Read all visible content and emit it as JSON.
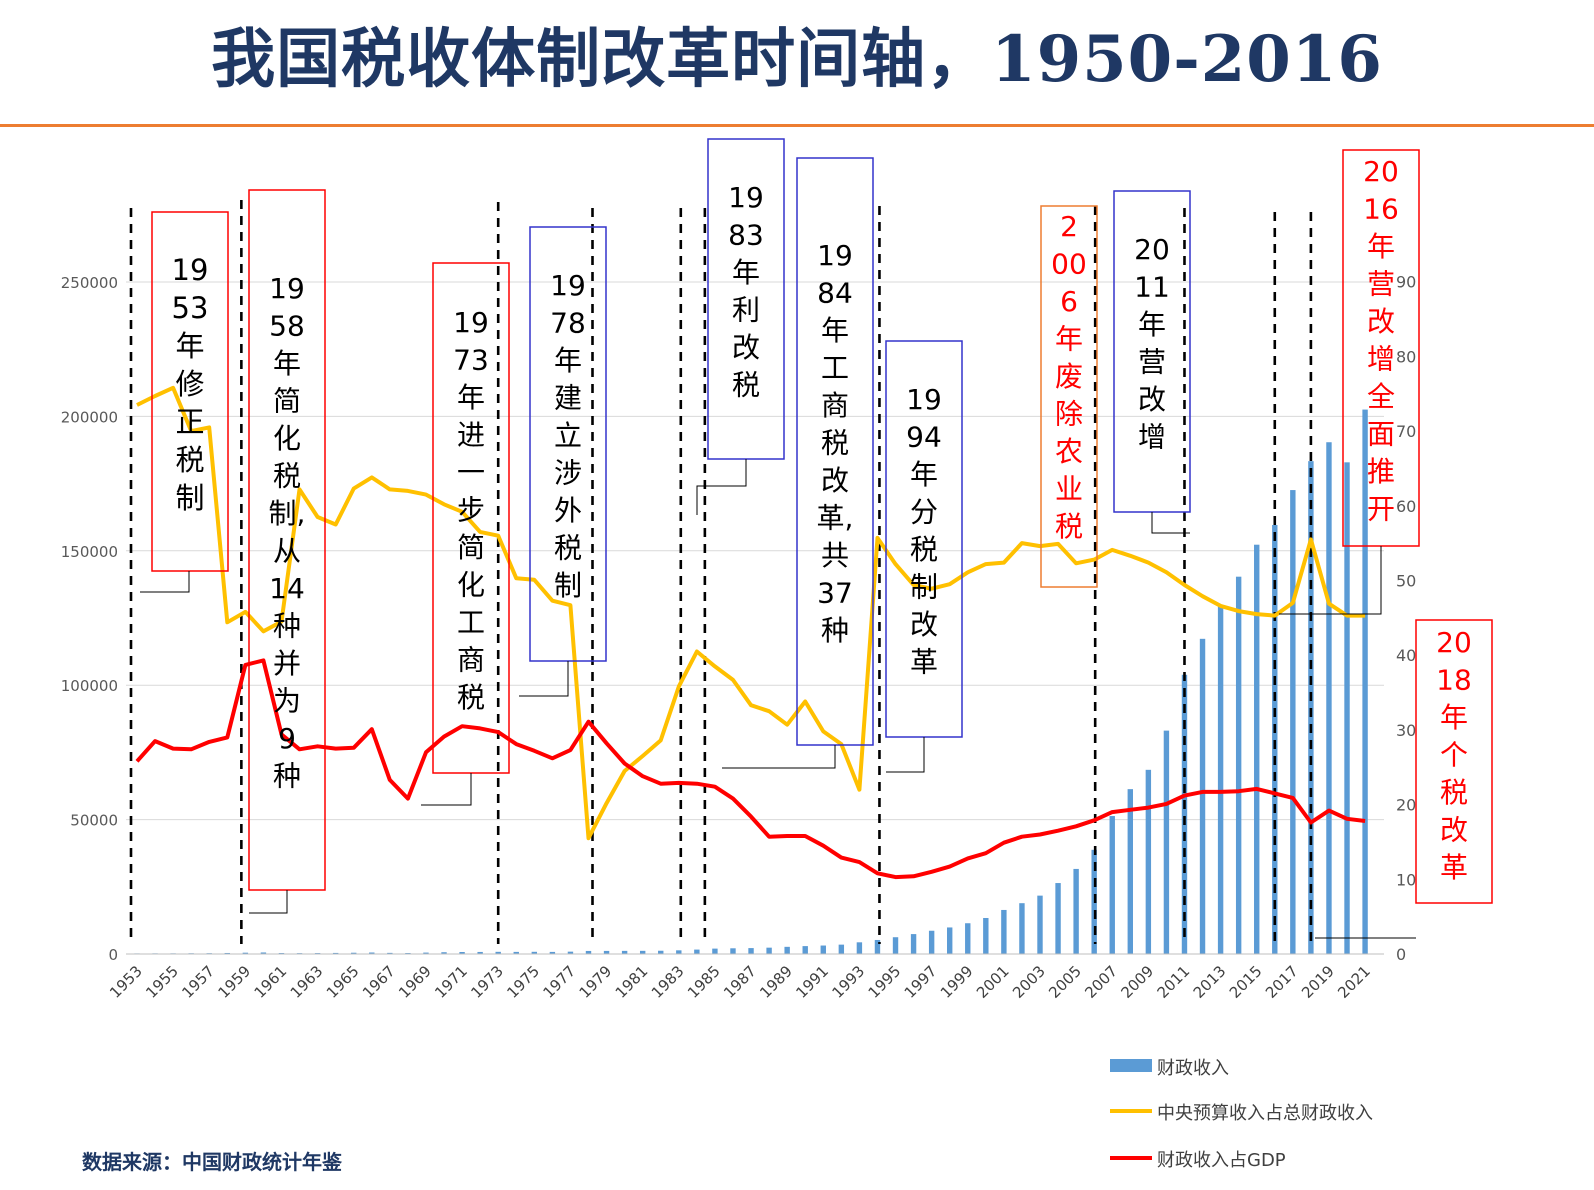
{
  "page": {
    "title": "我国税收体制改革时间轴，1950-2016",
    "source": "数据来源：中国财政统计年鉴"
  },
  "colors": {
    "title": "#1f3864",
    "rule": "#ed7d31",
    "revenue": "#5b9bd5",
    "central_share": "#ffc000",
    "revenue_gdp": "#ff0000",
    "box_red": "#ff0000",
    "box_blue": "#3333cc",
    "box_orange": "#ed7d31"
  },
  "chart_data": {
    "type": "combo",
    "x": [
      1953,
      1954,
      1955,
      1956,
      1957,
      1958,
      1959,
      1960,
      1961,
      1962,
      1963,
      1964,
      1965,
      1966,
      1967,
      1968,
      1969,
      1970,
      1971,
      1972,
      1973,
      1974,
      1975,
      1976,
      1977,
      1978,
      1979,
      1980,
      1981,
      1982,
      1983,
      1984,
      1985,
      1986,
      1987,
      1988,
      1989,
      1990,
      1991,
      1992,
      1993,
      1994,
      1995,
      1996,
      1997,
      1998,
      1999,
      2000,
      2001,
      2002,
      2003,
      2004,
      2005,
      2006,
      2007,
      2008,
      2009,
      2010,
      2011,
      2012,
      2013,
      2014,
      2015,
      2016,
      2017,
      2018,
      2019,
      2020,
      2021
    ],
    "x_tick_labels": [
      "1953",
      "1955",
      "1957",
      "1959",
      "1961",
      "1963",
      "1965",
      "1967",
      "1969",
      "1971",
      "1973",
      "1975",
      "1977",
      "1979",
      "1981",
      "1983",
      "1985",
      "1987",
      "1989",
      "1991",
      "1993",
      "1995",
      "1997",
      "1999",
      "2001",
      "2003",
      "2005",
      "2007",
      "2009",
      "2011",
      "2013",
      "2015",
      "2017",
      "2019",
      "2021"
    ],
    "y_left": {
      "ticks": [
        "0",
        "50000",
        "100000",
        "150000",
        "200000",
        "250000"
      ],
      "range": [
        0,
        250000
      ]
    },
    "y_right": {
      "ticks": [
        "0",
        "10",
        "20",
        "30",
        "40",
        "50",
        "60",
        "70",
        "80",
        "90"
      ],
      "range": [
        0,
        90
      ]
    },
    "grid": true,
    "legend_position": "bottom-right",
    "series": [
      {
        "name": "财政收入",
        "type": "bar",
        "axis": "left",
        "values": [
          213,
          245,
          249,
          280,
          303,
          379,
          487,
          572,
          356,
          314,
          342,
          400,
          473,
          558,
          419,
          361,
          527,
          663,
          744,
          766,
          809,
          783,
          816,
          777,
          874,
          1132,
          1146,
          1160,
          1176,
          1212,
          1367,
          1643,
          2005,
          2122,
          2199,
          2357,
          2665,
          2937,
          3149,
          3483,
          4349,
          5218,
          6242,
          7408,
          8651,
          9876,
          11444,
          13395,
          16386,
          18904,
          21715,
          26396,
          31649,
          38760,
          51322,
          61330,
          68518,
          83102,
          103874,
          117254,
          129210,
          140370,
          152269,
          159605,
          172593,
          183360,
          190390,
          182914,
          202539
        ]
      },
      {
        "name": "中央预算收入占总财政收入",
        "type": "line",
        "axis": "right",
        "values": [
          73.5,
          74.7,
          75.8,
          70,
          70.5,
          44.4,
          45.8,
          43.2,
          44.5,
          62.2,
          58.5,
          57.5,
          62.3,
          63.8,
          62.2,
          62,
          61.5,
          60.2,
          59.2,
          56.5,
          56,
          50.3,
          50.1,
          47.3,
          46.7,
          15.5,
          20.2,
          24.5,
          26.5,
          28.6,
          35.8,
          40.5,
          38.5,
          36.7,
          33.3,
          32.5,
          30.7,
          33.8,
          29.8,
          28.1,
          22,
          55.7,
          52.2,
          49.4,
          48.9,
          49.5,
          51.1,
          52.2,
          52.4,
          55,
          54.6,
          54.9,
          52.3,
          52.8,
          54.1,
          53.3,
          52.4,
          51.1,
          49.4,
          47.9,
          46.6,
          45.9,
          45.5,
          45.3,
          47,
          55.5,
          46.9,
          45.3,
          45.3
        ]
      },
      {
        "name": "财政收入占GDP",
        "type": "line",
        "axis": "right",
        "values": [
          25.8,
          28.5,
          27.5,
          27.4,
          28.4,
          29,
          38.7,
          39.3,
          29.4,
          27.4,
          27.8,
          27.5,
          27.6,
          30.1,
          23.3,
          20.8,
          27,
          29.1,
          30.5,
          30.2,
          29.7,
          28.1,
          27.2,
          26.2,
          27.3,
          31.1,
          28.2,
          25.5,
          23.8,
          22.8,
          22.9,
          22.8,
          22.4,
          20.8,
          18.4,
          15.7,
          15.8,
          15.8,
          14.5,
          12.9,
          12.3,
          10.8,
          10.3,
          10.4,
          11,
          11.7,
          12.8,
          13.5,
          14.9,
          15.7,
          16,
          16.5,
          17.1,
          17.9,
          19,
          19.3,
          19.6,
          20.1,
          21.2,
          21.7,
          21.7,
          21.8,
          22.1,
          21.5,
          20.9,
          17.6,
          19.2,
          18.1,
          17.8
        ]
      }
    ],
    "annotations": [
      {
        "year": 1953,
        "label": "1953年修正税制",
        "text": [
          "19",
          "53",
          "年",
          "修",
          "正",
          "税",
          "制"
        ],
        "color": "red"
      },
      {
        "year": 1958,
        "label": "1958年简化税制,从14种并为9种",
        "text": [
          "19",
          "58",
          "年",
          "简",
          "化",
          "税",
          "制,",
          "从",
          "14",
          "种",
          "并",
          "为",
          "9",
          "种"
        ],
        "color": "red"
      },
      {
        "year": 1973,
        "label": "1973年进一步简化工商税",
        "text": [
          "19",
          "73",
          "年",
          "进",
          "一",
          "步",
          "简",
          "化",
          "工",
          "商",
          "税"
        ],
        "color": "red"
      },
      {
        "year": 1978,
        "label": "1978年建立涉外税制",
        "text": [
          "19",
          "78",
          "年",
          "建",
          "立",
          "涉",
          "外",
          "税",
          "制"
        ],
        "color": "blue"
      },
      {
        "year": 1983,
        "label": "1983年利改税",
        "text": [
          "19",
          "83",
          "年",
          "利",
          "改",
          "税"
        ],
        "color": "blue"
      },
      {
        "year": 1984,
        "label": "1984年工商税改革,共37种",
        "text": [
          "19",
          "84",
          "年",
          "工",
          "商",
          "税",
          "改",
          "革,",
          "共",
          "37",
          "种"
        ],
        "color": "blue"
      },
      {
        "year": 1994,
        "label": "1994年分税制改革",
        "text": [
          "19",
          "94",
          "年",
          "分",
          "税",
          "制",
          "改",
          "革"
        ],
        "color": "blue"
      },
      {
        "year": 2006,
        "label": "2006年废除农业税",
        "text": [
          "2",
          "00",
          "6",
          "年",
          "废",
          "除",
          "农",
          "业",
          "税"
        ],
        "color": "red"
      },
      {
        "year": 2011,
        "label": "2011年营改增",
        "text": [
          "20",
          "11",
          "年",
          "营",
          "改",
          "增"
        ],
        "color": "blue"
      },
      {
        "year": 2016,
        "label": "2016年营改增全面推开",
        "text": [
          "20",
          "16",
          "年",
          "营",
          "改",
          "增",
          "全",
          "面",
          "推",
          "开"
        ],
        "color": "red"
      },
      {
        "year": 2018,
        "label": "2018年个税改革",
        "text": [
          "20",
          "18",
          "年",
          "个",
          "税",
          "改",
          "革"
        ],
        "color": "red"
      }
    ]
  }
}
